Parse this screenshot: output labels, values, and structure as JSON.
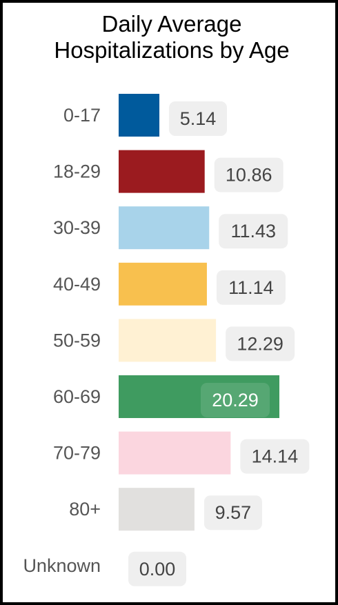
{
  "chart_data": {
    "type": "bar",
    "orientation": "horizontal",
    "title_lines": [
      "Daily Average",
      "Hospitalizations by Age"
    ],
    "categories": [
      "0-17",
      "18-29",
      "30-39",
      "40-49",
      "50-59",
      "60-69",
      "70-79",
      "80+",
      "Unknown"
    ],
    "values": [
      5.14,
      10.86,
      11.43,
      11.14,
      12.29,
      20.29,
      14.14,
      9.57,
      0.0
    ],
    "value_labels": [
      "5.14",
      "10.86",
      "11.43",
      "11.14",
      "12.29",
      "20.29",
      "14.14",
      "9.57",
      "0.00"
    ],
    "colors": [
      "#005a9c",
      "#9b1b1f",
      "#a8d3ea",
      "#f8c04e",
      "#fff1d3",
      "#3f9b60",
      "#fbd6df",
      "#e1e0de",
      "#e1e0de"
    ],
    "xlim": [
      0,
      20.29
    ],
    "grid": false,
    "legend": "none"
  }
}
